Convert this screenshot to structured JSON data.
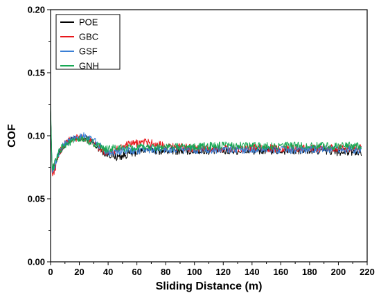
{
  "chart_data": {
    "type": "line",
    "xlabel": "Sliding Distance (m)",
    "ylabel": "COF",
    "xlim": [
      0,
      220
    ],
    "ylim": [
      0,
      0.2
    ],
    "x_ticks": [
      "0",
      "20",
      "40",
      "60",
      "80",
      "100",
      "120",
      "140",
      "160",
      "180",
      "200",
      "220"
    ],
    "y_ticks": [
      "0.00",
      "0.05",
      "0.10",
      "0.15",
      "0.20"
    ],
    "legend_position": "top-left",
    "grid": false,
    "x": [
      0,
      1,
      2,
      4,
      6,
      8,
      10,
      14,
      18,
      22,
      26,
      30,
      34,
      38,
      42,
      46,
      50,
      55,
      60,
      65,
      70,
      75,
      80,
      90,
      100,
      110,
      120,
      130,
      140,
      150,
      160,
      170,
      180,
      190,
      200,
      210,
      216
    ],
    "series": [
      {
        "name": "POE",
        "color": "#000000",
        "values": [
          0.12,
          0.075,
          0.074,
          0.08,
          0.086,
          0.09,
          0.093,
          0.096,
          0.097,
          0.098,
          0.097,
          0.094,
          0.09,
          0.086,
          0.085,
          0.083,
          0.084,
          0.086,
          0.087,
          0.089,
          0.089,
          0.088,
          0.088,
          0.088,
          0.088,
          0.088,
          0.088,
          0.088,
          0.088,
          0.088,
          0.088,
          0.088,
          0.088,
          0.088,
          0.087,
          0.087,
          0.087
        ]
      },
      {
        "name": "GBC",
        "color": "#e8171b",
        "values": [
          0.12,
          0.072,
          0.07,
          0.078,
          0.086,
          0.091,
          0.094,
          0.097,
          0.098,
          0.098,
          0.097,
          0.094,
          0.09,
          0.087,
          0.088,
          0.089,
          0.091,
          0.093,
          0.094,
          0.095,
          0.094,
          0.093,
          0.092,
          0.091,
          0.09,
          0.09,
          0.09,
          0.09,
          0.09,
          0.09,
          0.09,
          0.09,
          0.09,
          0.09,
          0.09,
          0.09,
          0.09
        ]
      },
      {
        "name": "GSF",
        "color": "#3a7fd5",
        "values": [
          0.12,
          0.074,
          0.073,
          0.08,
          0.087,
          0.091,
          0.094,
          0.097,
          0.099,
          0.1,
          0.099,
          0.096,
          0.092,
          0.088,
          0.087,
          0.087,
          0.088,
          0.088,
          0.088,
          0.089,
          0.089,
          0.089,
          0.089,
          0.089,
          0.089,
          0.089,
          0.089,
          0.089,
          0.089,
          0.089,
          0.089,
          0.089,
          0.089,
          0.089,
          0.089,
          0.089,
          0.089
        ]
      },
      {
        "name": "GNH",
        "color": "#18a854",
        "values": [
          0.125,
          0.076,
          0.075,
          0.081,
          0.087,
          0.091,
          0.093,
          0.095,
          0.096,
          0.097,
          0.096,
          0.094,
          0.091,
          0.089,
          0.09,
          0.09,
          0.09,
          0.09,
          0.09,
          0.091,
          0.091,
          0.091,
          0.091,
          0.091,
          0.091,
          0.092,
          0.092,
          0.092,
          0.092,
          0.092,
          0.092,
          0.092,
          0.092,
          0.092,
          0.092,
          0.092,
          0.092
        ]
      }
    ]
  }
}
